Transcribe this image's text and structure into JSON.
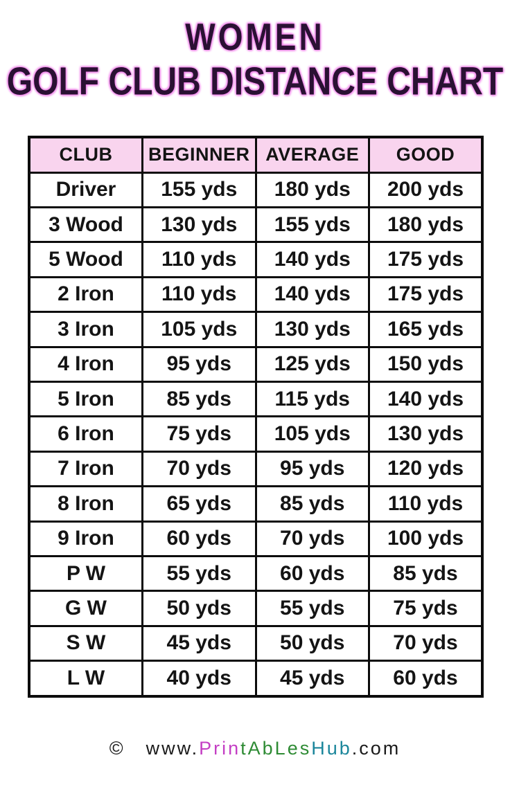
{
  "title": {
    "line1": "WOMEN",
    "line2": "GOLF CLUB DISTANCE CHART"
  },
  "chart_data": {
    "type": "table",
    "title": "Women Golf Club Distance Chart",
    "columns": [
      "CLUB",
      "BEGINNER",
      "AVERAGE",
      "GOOD"
    ],
    "unit": "yds",
    "rows": [
      [
        "Driver",
        "155 yds",
        "180 yds",
        "200 yds"
      ],
      [
        "3 Wood",
        "130 yds",
        "155 yds",
        "180 yds"
      ],
      [
        "5 Wood",
        "110 yds",
        "140 yds",
        "175 yds"
      ],
      [
        "2 Iron",
        "110 yds",
        "140 yds",
        "175 yds"
      ],
      [
        "3 Iron",
        "105 yds",
        "130 yds",
        "165 yds"
      ],
      [
        "4 Iron",
        "95 yds",
        "125 yds",
        "150 yds"
      ],
      [
        "5 Iron",
        "85 yds",
        "115 yds",
        "140 yds"
      ],
      [
        "6 Iron",
        "75 yds",
        "105 yds",
        "130 yds"
      ],
      [
        "7 Iron",
        "70 yds",
        "95 yds",
        "120 yds"
      ],
      [
        "8 Iron",
        "65 yds",
        "85 yds",
        "110 yds"
      ],
      [
        "9 Iron",
        "60 yds",
        "70 yds",
        "100 yds"
      ],
      [
        "P W",
        "55 yds",
        "60 yds",
        "85 yds"
      ],
      [
        "G W",
        "50 yds",
        "55 yds",
        "75 yds"
      ],
      [
        "S W",
        "45 yds",
        "50 yds",
        "70 yds"
      ],
      [
        "L W",
        "40 yds",
        "45 yds",
        "60 yds"
      ]
    ]
  },
  "footer": {
    "copyright_symbol": "©",
    "segments": [
      {
        "text": "www.",
        "color": "#1a1a1a"
      },
      {
        "text": "Prin",
        "color": "#c43fc4"
      },
      {
        "text": "tAbLes",
        "color": "#2e8b34"
      },
      {
        "text": "Hub",
        "color": "#1b869b"
      },
      {
        "text": ".com",
        "color": "#1a1a1a"
      }
    ]
  },
  "colors": {
    "background": "#ffffff",
    "title_text": "#2a1133",
    "title_glow": "#ee82e8",
    "header_bg": "#f9d4ee",
    "border": "#0c0c0c",
    "cell_text": "#141414"
  }
}
